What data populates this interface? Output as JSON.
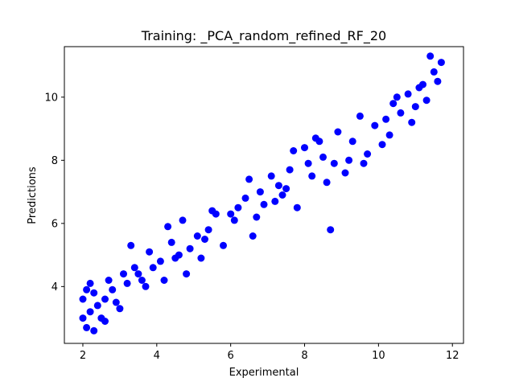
{
  "chart_data": {
    "type": "scatter",
    "title": "Training: _PCA_random_refined_RF_20",
    "xlabel": "Experimental",
    "ylabel": "Predictions",
    "xlim": [
      1.5,
      12.3
    ],
    "ylim": [
      2.2,
      11.6
    ],
    "xticks": [
      2,
      4,
      6,
      8,
      10,
      12
    ],
    "yticks": [
      4,
      6,
      8,
      10
    ],
    "grid": false,
    "legend": "none",
    "marker_color": "#0000ff",
    "series": [
      {
        "x": [
          2.0,
          2.0,
          2.1,
          2.1,
          2.2,
          2.2,
          2.3,
          2.3,
          2.4,
          2.5,
          2.6,
          2.7,
          2.9,
          3.1,
          3.3,
          3.6,
          3.8,
          3.9,
          4.2,
          4.3,
          4.6,
          4.7,
          4.8,
          5.3,
          5.6,
          5.8,
          6.1,
          6.4,
          6.6,
          6.8,
          6.9,
          7.3,
          7.6,
          7.8,
          8.2,
          8.4,
          8.6,
          8.7,
          9.2,
          9.3,
          9.6,
          9.9,
          10.2,
          10.3,
          10.6,
          10.8,
          11.0,
          11.2,
          11.3,
          11.4,
          11.6,
          11.7,
          2.8,
          3.0,
          3.4,
          3.7,
          4.4,
          4.9,
          5.1,
          5.2,
          5.5,
          6.2,
          6.7,
          7.1,
          7.4,
          7.7,
          8.1,
          8.5,
          8.9,
          9.1,
          9.5,
          10.1,
          10.5,
          10.9,
          11.5,
          3.2,
          4.1,
          5.4,
          7.2,
          8.0,
          9.7,
          10.4,
          2.6,
          3.5,
          4.5,
          6.0,
          6.5,
          7.5,
          8.3,
          8.8,
          11.1
        ],
        "y": [
          3.6,
          3.0,
          3.9,
          2.7,
          4.1,
          3.2,
          2.6,
          3.8,
          3.4,
          3.0,
          3.6,
          4.2,
          3.5,
          4.4,
          5.3,
          4.2,
          5.1,
          4.6,
          4.2,
          5.9,
          5.0,
          6.1,
          4.4,
          5.5,
          6.3,
          5.3,
          6.1,
          6.8,
          5.6,
          7.0,
          6.6,
          7.2,
          7.7,
          6.5,
          7.5,
          8.6,
          7.3,
          5.8,
          8.0,
          8.6,
          7.9,
          9.1,
          9.3,
          8.8,
          9.5,
          10.1,
          9.7,
          10.4,
          9.9,
          11.3,
          10.5,
          11.1,
          3.9,
          3.3,
          4.6,
          4.0,
          5.4,
          5.2,
          5.6,
          4.9,
          6.4,
          6.5,
          6.2,
          7.5,
          6.9,
          8.3,
          7.9,
          8.1,
          8.9,
          7.6,
          9.4,
          8.5,
          10.0,
          9.2,
          10.8,
          4.1,
          4.8,
          5.8,
          6.7,
          8.4,
          8.2,
          9.8,
          2.9,
          4.4,
          4.9,
          6.3,
          7.4,
          7.1,
          8.7,
          7.9,
          10.3
        ]
      }
    ]
  }
}
